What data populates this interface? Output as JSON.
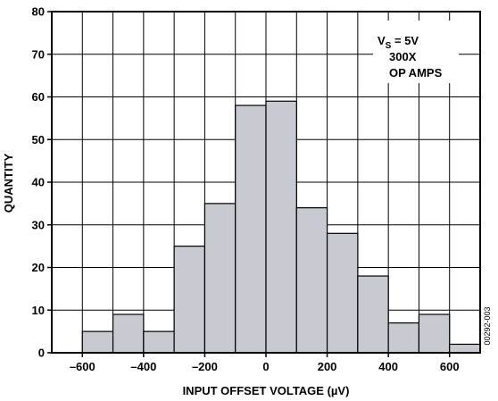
{
  "chart_data": {
    "type": "bar",
    "xlabel_prefix": "INPUT OFFSET VOLTAGE (",
    "xlabel_unit": "µ",
    "xlabel_suffix": "V)",
    "ylabel": "QUANTITY",
    "xlim": [
      -700,
      700
    ],
    "ylim": [
      0,
      80
    ],
    "bin_width": 100,
    "grid": true,
    "x_ticks": [
      -600,
      -400,
      -200,
      0,
      200,
      400,
      600
    ],
    "x_tick_labels": [
      "–600",
      "–400",
      "–200",
      "0",
      "200",
      "400",
      "600"
    ],
    "y_ticks": [
      0,
      10,
      20,
      30,
      40,
      50,
      60,
      70,
      80
    ],
    "y_tick_labels": [
      "0",
      "10",
      "20",
      "30",
      "40",
      "50",
      "60",
      "70",
      "80"
    ],
    "bins": [
      {
        "start": -600,
        "end": -500,
        "value": 5
      },
      {
        "start": -500,
        "end": -400,
        "value": 9
      },
      {
        "start": -400,
        "end": -300,
        "value": 5
      },
      {
        "start": -300,
        "end": -200,
        "value": 25
      },
      {
        "start": -200,
        "end": -100,
        "value": 35
      },
      {
        "start": -100,
        "end": 0,
        "value": 58
      },
      {
        "start": 0,
        "end": 100,
        "value": 59
      },
      {
        "start": 100,
        "end": 200,
        "value": 34
      },
      {
        "start": 200,
        "end": 300,
        "value": 28
      },
      {
        "start": 300,
        "end": 400,
        "value": 18
      },
      {
        "start": 400,
        "end": 500,
        "value": 7
      },
      {
        "start": 500,
        "end": 600,
        "value": 9
      },
      {
        "start": 600,
        "end": 700,
        "value": 2
      }
    ],
    "legend_placement": "top-right",
    "annotation": {
      "line1_prefix": "V",
      "line1_sub": "S",
      "line1_suffix": " = 5V",
      "line2": "300X",
      "line3": "OP AMPS"
    },
    "figure_code": "00292-003",
    "colors": {
      "bar_fill": "#c8cad2",
      "bar_stroke": "#000000",
      "grid": "#000000"
    }
  }
}
